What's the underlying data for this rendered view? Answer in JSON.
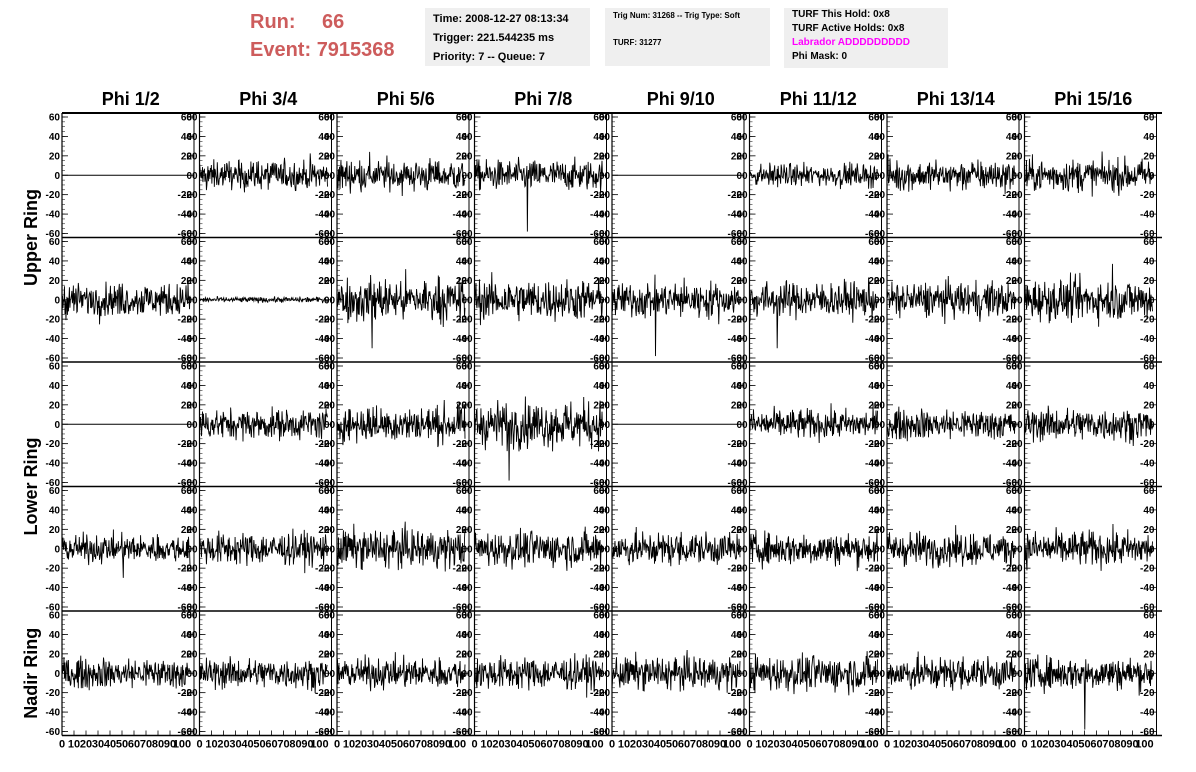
{
  "header": {
    "run_label": "Run:",
    "run_value": "66",
    "event_label": "Event:",
    "event_value": "7915368",
    "time_line": "Time: 2008-12-27 08:13:34",
    "trigger_line": "Trigger: 221.544235 ms",
    "priority_line": "Priority: 7 -- Queue: 7",
    "trig_num_line": "Trig Num: 31268 -- Trig Type: Soft",
    "turf_line": "TURF: 31277",
    "turf_hold_line": "TURF This Hold: 0x8",
    "turf_active_line": "TURF Active Holds: 0x8",
    "labrador_line": "Labrador ADDDDDDDDD",
    "phi_mask_line": "Phi Mask: 0",
    "colors": {
      "run": "#cd5c5c",
      "labrador": "#ff00ff",
      "info_bg": "#efefef"
    }
  },
  "chart_data": {
    "type": "line",
    "layout": "grid",
    "column_titles": [
      "Phi 1/2",
      "Phi 3/4",
      "Phi 5/6",
      "Phi 7/8",
      "Phi 9/10",
      "Phi 11/12",
      "Phi 13/14",
      "Phi 15/16"
    ],
    "row_titles": [
      "Upper Ring",
      "Lower Ring",
      "Nadir Ring"
    ],
    "panel_rows": 5,
    "row_groups": [
      {
        "title": "Upper Ring",
        "panel_rows": [
          0,
          1
        ]
      },
      {
        "title": "Lower Ring",
        "panel_rows": [
          2,
          3
        ]
      },
      {
        "title": "Nadir Ring",
        "panel_rows": [
          4
        ]
      }
    ],
    "ylim": [
      -60,
      60
    ],
    "yticks": [
      60,
      40,
      20,
      0,
      -20,
      -40,
      -60
    ],
    "xlim": [
      0,
      100
    ],
    "xticks": [
      0,
      10,
      20,
      30,
      40,
      50,
      60,
      70,
      80,
      90,
      100
    ],
    "xtick_labels": [
      "0",
      "10",
      "20",
      "30",
      "40",
      "50",
      "60",
      "70",
      "80",
      "90",
      "100"
    ],
    "grid": false,
    "line_color": "#000000",
    "n_samples": 260,
    "panels": [
      {
        "row": 0,
        "col": 0,
        "flat": true,
        "amp": 0,
        "spike": 0
      },
      {
        "row": 0,
        "col": 1,
        "flat": false,
        "amp": 11,
        "spike": 0
      },
      {
        "row": 0,
        "col": 2,
        "flat": false,
        "amp": 12,
        "spike": 0
      },
      {
        "row": 0,
        "col": 3,
        "flat": false,
        "amp": 11,
        "spike": -58
      },
      {
        "row": 0,
        "col": 4,
        "flat": true,
        "amp": 0,
        "spike": 0
      },
      {
        "row": 0,
        "col": 5,
        "flat": false,
        "amp": 8,
        "spike": 0
      },
      {
        "row": 0,
        "col": 6,
        "flat": false,
        "amp": 11,
        "spike": 0
      },
      {
        "row": 0,
        "col": 7,
        "flat": false,
        "amp": 12,
        "spike": 0
      },
      {
        "row": 1,
        "col": 0,
        "flat": false,
        "amp": 12,
        "spike": 0
      },
      {
        "row": 1,
        "col": 1,
        "flat": false,
        "amp": 2,
        "spike": 0
      },
      {
        "row": 1,
        "col": 2,
        "flat": false,
        "amp": 16,
        "spike": -50
      },
      {
        "row": 1,
        "col": 3,
        "flat": false,
        "amp": 15,
        "spike": 0
      },
      {
        "row": 1,
        "col": 4,
        "flat": false,
        "amp": 13,
        "spike": -58
      },
      {
        "row": 1,
        "col": 5,
        "flat": false,
        "amp": 13,
        "spike": -50
      },
      {
        "row": 1,
        "col": 6,
        "flat": false,
        "amp": 13,
        "spike": 0
      },
      {
        "row": 1,
        "col": 7,
        "flat": false,
        "amp": 15,
        "spike": 37
      },
      {
        "row": 2,
        "col": 0,
        "flat": true,
        "amp": 0,
        "spike": 0
      },
      {
        "row": 2,
        "col": 1,
        "flat": false,
        "amp": 11,
        "spike": 0
      },
      {
        "row": 2,
        "col": 2,
        "flat": false,
        "amp": 13,
        "spike": 0
      },
      {
        "row": 2,
        "col": 3,
        "flat": false,
        "amp": 17,
        "spike": -58
      },
      {
        "row": 2,
        "col": 4,
        "flat": true,
        "amp": 0,
        "spike": 0
      },
      {
        "row": 2,
        "col": 5,
        "flat": false,
        "amp": 11,
        "spike": 0
      },
      {
        "row": 2,
        "col": 6,
        "flat": false,
        "amp": 11,
        "spike": 0
      },
      {
        "row": 2,
        "col": 7,
        "flat": false,
        "amp": 12,
        "spike": 0
      },
      {
        "row": 3,
        "col": 0,
        "flat": false,
        "amp": 10,
        "spike": -30
      },
      {
        "row": 3,
        "col": 1,
        "flat": false,
        "amp": 12,
        "spike": 0
      },
      {
        "row": 3,
        "col": 2,
        "flat": false,
        "amp": 14,
        "spike": 0
      },
      {
        "row": 3,
        "col": 3,
        "flat": false,
        "amp": 13,
        "spike": 0
      },
      {
        "row": 3,
        "col": 4,
        "flat": false,
        "amp": 12,
        "spike": 0
      },
      {
        "row": 3,
        "col": 5,
        "flat": false,
        "amp": 12,
        "spike": 0
      },
      {
        "row": 3,
        "col": 6,
        "flat": false,
        "amp": 12,
        "spike": 0
      },
      {
        "row": 3,
        "col": 7,
        "flat": false,
        "amp": 13,
        "spike": 0
      },
      {
        "row": 4,
        "col": 0,
        "flat": false,
        "amp": 11,
        "spike": 0
      },
      {
        "row": 4,
        "col": 1,
        "flat": false,
        "amp": 11,
        "spike": 0
      },
      {
        "row": 4,
        "col": 2,
        "flat": false,
        "amp": 11,
        "spike": 0
      },
      {
        "row": 4,
        "col": 3,
        "flat": false,
        "amp": 12,
        "spike": 0
      },
      {
        "row": 4,
        "col": 4,
        "flat": false,
        "amp": 12,
        "spike": 0
      },
      {
        "row": 4,
        "col": 5,
        "flat": false,
        "amp": 13,
        "spike": 0
      },
      {
        "row": 4,
        "col": 6,
        "flat": false,
        "amp": 12,
        "spike": 0
      },
      {
        "row": 4,
        "col": 7,
        "flat": false,
        "amp": 12,
        "spike": -58
      }
    ]
  }
}
